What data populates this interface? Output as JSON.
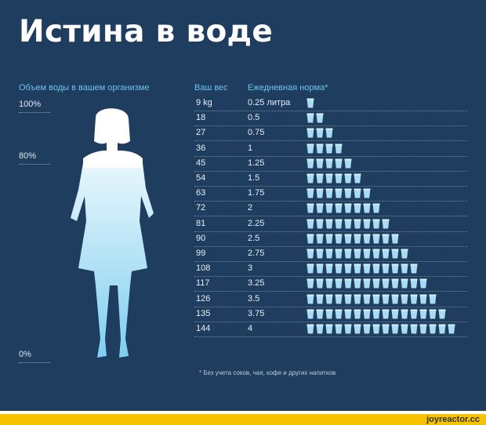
{
  "title": "Истина в воде",
  "left": {
    "header": "Объем воды в вашем организме",
    "levels": [
      "100%",
      "80%",
      "0%"
    ]
  },
  "table": {
    "weight_header": "Ваш вес",
    "norm_header": "Ежедневная норма*",
    "rows": [
      {
        "weight": "9 kg",
        "norm": "0.25 литра",
        "cups": 1
      },
      {
        "weight": "18",
        "norm": "0.5",
        "cups": 2
      },
      {
        "weight": "27",
        "norm": "0.75",
        "cups": 3
      },
      {
        "weight": "36",
        "norm": "1",
        "cups": 4
      },
      {
        "weight": "45",
        "norm": "1.25",
        "cups": 5
      },
      {
        "weight": "54",
        "norm": "1.5",
        "cups": 6
      },
      {
        "weight": "63",
        "norm": "1.75",
        "cups": 7
      },
      {
        "weight": "72",
        "norm": "2",
        "cups": 8
      },
      {
        "weight": "81",
        "norm": "2.25",
        "cups": 9
      },
      {
        "weight": "90",
        "norm": "2.5",
        "cups": 10
      },
      {
        "weight": "99",
        "norm": "2.75",
        "cups": 11
      },
      {
        "weight": "108",
        "norm": "3",
        "cups": 12
      },
      {
        "weight": "117",
        "norm": "3.25",
        "cups": 13
      },
      {
        "weight": "126",
        "norm": "3.5",
        "cups": 14
      },
      {
        "weight": "135",
        "norm": "3.75",
        "cups": 15
      },
      {
        "weight": "144",
        "norm": "4",
        "cups": 16
      }
    ]
  },
  "footnote": "* Без учета соков, чая, кофе и других напитков",
  "watermark": "joyreactor.cc",
  "colors": {
    "background": "#1e3d5f",
    "accent": "#6fc3e8",
    "cup": "#a9dcf2",
    "strip": "#f7c200"
  },
  "icons": {
    "cup": "cup-icon"
  }
}
